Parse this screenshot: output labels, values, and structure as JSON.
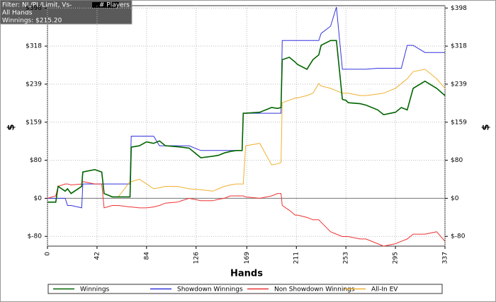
{
  "chart_data": {
    "type": "line",
    "info": {
      "filter": "Filter: NL/PL/Limit, Vs-",
      "filter_end": "# Players",
      "hands": "All Hands",
      "winnings": "Winnings: $215.20"
    },
    "x_label": "Hands",
    "y_label": "$",
    "y2_label": "$",
    "x": [
      0,
      7,
      9,
      15,
      17,
      20,
      29,
      30,
      40,
      46,
      48,
      55,
      60,
      70,
      71,
      78,
      84,
      90,
      95,
      100,
      110,
      120,
      130,
      140,
      145,
      150,
      155,
      160,
      165,
      166,
      168,
      180,
      190,
      195,
      198,
      199,
      205,
      210,
      212,
      220,
      225,
      230,
      232,
      240,
      245,
      250,
      253,
      255,
      265,
      270,
      280,
      285,
      295,
      300,
      305,
      310,
      320,
      330,
      337
    ],
    "series": [
      {
        "name": "Winnings",
        "color": "#006400",
        "values": [
          -8,
          -8,
          25,
          15,
          20,
          10,
          25,
          55,
          60,
          55,
          10,
          3,
          3,
          3,
          107,
          110,
          118,
          115,
          120,
          110,
          108,
          105,
          85,
          88,
          90,
          95,
          98,
          100,
          100,
          178,
          178,
          180,
          190,
          188,
          190,
          290,
          295,
          285,
          280,
          270,
          290,
          300,
          320,
          330,
          330,
          207,
          205,
          200,
          198,
          195,
          185,
          175,
          180,
          190,
          185,
          230,
          245,
          230,
          215
        ]
      },
      {
        "name": "Showdown Winnings",
        "color": "#3333dd",
        "values": [
          0,
          0,
          0,
          0,
          -15,
          -15,
          -20,
          30,
          30,
          30,
          30,
          30,
          30,
          30,
          130,
          130,
          130,
          130,
          110,
          110,
          110,
          110,
          100,
          100,
          100,
          100,
          100,
          100,
          100,
          178,
          178,
          178,
          178,
          178,
          178,
          330,
          330,
          330,
          330,
          330,
          330,
          330,
          345,
          360,
          400,
          270,
          270,
          270,
          270,
          270,
          272,
          272,
          272,
          272,
          320,
          320,
          305,
          305,
          305
        ]
      },
      {
        "name": "Non Showdown Winnings",
        "color": "#ee3333",
        "values": [
          0,
          5,
          25,
          30,
          30,
          28,
          30,
          35,
          30,
          30,
          -20,
          -15,
          -15,
          -18,
          -18,
          -20,
          -20,
          -18,
          -15,
          -10,
          -8,
          0,
          -5,
          -5,
          -2,
          0,
          5,
          5,
          5,
          5,
          3,
          0,
          5,
          10,
          10,
          -15,
          -25,
          -35,
          -35,
          -40,
          -45,
          -45,
          -50,
          -70,
          -75,
          -80,
          -80,
          -80,
          -85,
          -85,
          -95,
          -100,
          -95,
          -90,
          -85,
          -75,
          -75,
          -70,
          -90
        ]
      },
      {
        "name": "All-In EV",
        "color": "#f0b030",
        "values": [
          -8,
          -8,
          25,
          15,
          20,
          10,
          25,
          55,
          60,
          55,
          10,
          3,
          3,
          35,
          35,
          40,
          30,
          20,
          22,
          25,
          25,
          20,
          18,
          15,
          20,
          25,
          28,
          30,
          30,
          30,
          110,
          115,
          70,
          72,
          75,
          200,
          205,
          210,
          210,
          215,
          220,
          240,
          235,
          230,
          225,
          220,
          220,
          220,
          215,
          215,
          218,
          220,
          230,
          240,
          250,
          265,
          270,
          250,
          230
        ]
      }
    ],
    "xlim": [
      0,
      337
    ],
    "xticks": [
      0,
      42,
      84,
      126,
      169,
      211,
      253,
      295,
      337
    ],
    "ylim": [
      -100,
      403
    ],
    "yticks": [
      {
        "value": -79.6,
        "label": "$-80"
      },
      {
        "value": 0,
        "label": "$0"
      },
      {
        "value": 79.6,
        "label": "$80"
      },
      {
        "value": 159.2,
        "label": "$159"
      },
      {
        "value": 238.8,
        "label": "$239"
      },
      {
        "value": 318.4,
        "label": "$318"
      },
      {
        "value": 398,
        "label": "$398"
      }
    ],
    "grid": true
  }
}
